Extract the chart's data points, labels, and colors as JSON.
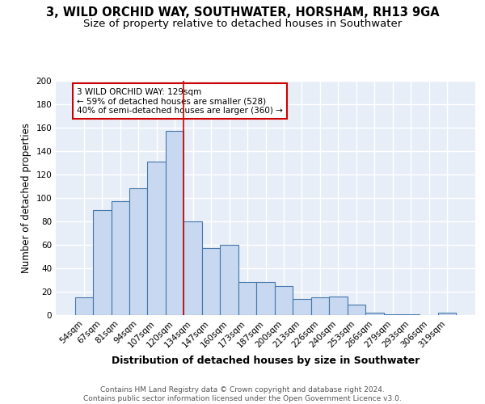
{
  "title": "3, WILD ORCHID WAY, SOUTHWATER, HORSHAM, RH13 9GA",
  "subtitle": "Size of property relative to detached houses in Southwater",
  "xlabel": "Distribution of detached houses by size in Southwater",
  "ylabel": "Number of detached properties",
  "categories": [
    "54sqm",
    "67sqm",
    "81sqm",
    "94sqm",
    "107sqm",
    "120sqm",
    "134sqm",
    "147sqm",
    "160sqm",
    "173sqm",
    "187sqm",
    "200sqm",
    "213sqm",
    "226sqm",
    "240sqm",
    "253sqm",
    "266sqm",
    "279sqm",
    "293sqm",
    "306sqm",
    "319sqm"
  ],
  "values": [
    15,
    90,
    97,
    108,
    131,
    157,
    80,
    57,
    60,
    28,
    28,
    25,
    14,
    15,
    16,
    9,
    2,
    1,
    1,
    0,
    2
  ],
  "bar_color": "#c8d8f0",
  "bar_edge_color": "#4477aa",
  "bar_linewidth": 0.8,
  "property_line_x": 5.5,
  "property_line_color": "#cc0000",
  "ylim": [
    0,
    200
  ],
  "yticks": [
    0,
    20,
    40,
    60,
    80,
    100,
    120,
    140,
    160,
    180,
    200
  ],
  "annotation_text": "3 WILD ORCHID WAY: 129sqm\n← 59% of detached houses are smaller (528)\n40% of semi-detached houses are larger (360) →",
  "annotation_box_color": "#ffffff",
  "annotation_box_edge": "#cc0000",
  "footer_text": "Contains HM Land Registry data © Crown copyright and database right 2024.\nContains public sector information licensed under the Open Government Licence v3.0.",
  "background_color": "#e8eef8",
  "grid_color": "#ffffff",
  "title_fontsize": 10.5,
  "subtitle_fontsize": 9.5,
  "xlabel_fontsize": 9,
  "ylabel_fontsize": 8.5,
  "tick_fontsize": 7.5,
  "footer_fontsize": 6.5
}
